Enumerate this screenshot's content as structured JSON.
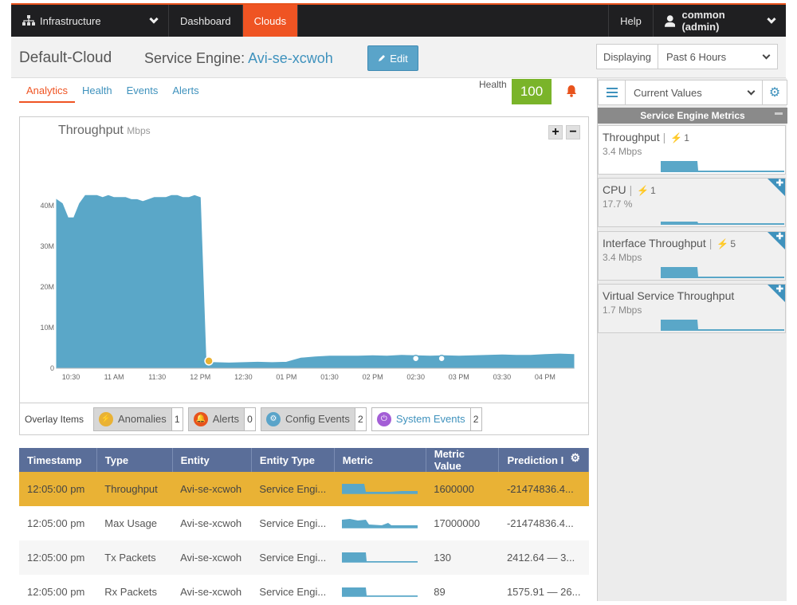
{
  "nav": {
    "infrastructure": "Infrastructure",
    "dashboard": "Dashboard",
    "clouds": "Clouds",
    "help": "Help",
    "user": "common (admin)"
  },
  "header": {
    "cloud": "Default-Cloud",
    "se_label": "Service Engine:",
    "se_name": "Avi-se-xcwoh",
    "edit": "Edit",
    "displaying_label": "Displaying",
    "displaying_value": "Past 6 Hours"
  },
  "tabs": [
    "Analytics",
    "Health",
    "Events",
    "Alerts"
  ],
  "health": {
    "label": "Health",
    "value": "100"
  },
  "chart_data": {
    "type": "area",
    "title": "Throughput",
    "unit": "Mbps",
    "yticks": [
      "0",
      "10M",
      "20M",
      "30M",
      "40M"
    ],
    "xticks": [
      "10:30",
      "11 AM",
      "11:30",
      "12 PM",
      "12:30",
      "01 PM",
      "01:30",
      "02 PM",
      "02:30",
      "03 PM",
      "03:30",
      "04 PM"
    ],
    "ylim": [
      0,
      50
    ],
    "color": "#5aa7c8",
    "x": [
      0,
      4,
      8,
      12,
      16,
      20,
      24,
      28,
      32,
      36,
      40,
      44,
      48,
      52,
      56,
      60,
      64,
      68,
      72,
      76,
      80,
      84,
      88,
      92,
      96,
      100,
      104,
      106,
      110,
      120,
      130,
      140,
      150,
      160,
      170,
      180,
      190,
      200,
      210,
      220,
      230,
      240,
      250,
      260,
      270,
      280,
      290,
      300,
      310,
      320,
      330,
      340,
      350,
      360
    ],
    "values": [
      41.5,
      40.5,
      37,
      37,
      40.5,
      42.5,
      42.5,
      42.5,
      42,
      42.5,
      42,
      42,
      42,
      41.5,
      41.5,
      41,
      41.5,
      42,
      42,
      42,
      42.5,
      42.5,
      42,
      42,
      42.5,
      42,
      1.5,
      1.4,
      1.4,
      1.3,
      1.4,
      1.5,
      1.4,
      1.5,
      2.5,
      2.8,
      3.0,
      3.0,
      3.0,
      3.1,
      3.0,
      3.2,
      3.1,
      3.0,
      3.1,
      3.0,
      3.1,
      3.2,
      3.3,
      3.2,
      3.2,
      3.4,
      3.5,
      3.4
    ],
    "markers": [
      {
        "x": 106,
        "kind": "anomaly"
      },
      {
        "x": 250,
        "kind": "config"
      },
      {
        "x": 268,
        "kind": "config"
      }
    ]
  },
  "overlay": {
    "title": "Overlay Items",
    "items": [
      {
        "label": "Anomalies",
        "count": "1",
        "color": "#e9b235"
      },
      {
        "label": "Alerts",
        "count": "0",
        "color": "#e8531c"
      },
      {
        "label": "Config Events",
        "count": "2",
        "color": "#5aa4c9"
      },
      {
        "label": "System Events",
        "count": "2",
        "color": "#a35ed6"
      }
    ]
  },
  "table": {
    "headers": [
      "Timestamp",
      "Type",
      "Entity",
      "Entity Type",
      "Metric",
      "Metric Value",
      "Prediction I"
    ],
    "rows": [
      [
        "12:05:00 pm",
        "Throughput",
        "Avi-se-xcwoh",
        "Service Engi...",
        "",
        "1600000",
        "-21474836.4..."
      ],
      [
        "12:05:00 pm",
        "Max Usage",
        "Avi-se-xcwoh",
        "Service Engi...",
        "",
        "17000000",
        "-21474836.4..."
      ],
      [
        "12:05:00 pm",
        "Tx Packets",
        "Avi-se-xcwoh",
        "Service Engi...",
        "",
        "130",
        "2412.64 — 3..."
      ],
      [
        "12:05:00 pm",
        "Rx Packets",
        "Avi-se-xcwoh",
        "Service Engi...",
        "",
        "89",
        "1575.91 — 26..."
      ]
    ]
  },
  "sidebar": {
    "select": "Current Values",
    "heading": "Service Engine Metrics",
    "metrics": [
      {
        "name": "Throughput",
        "alerts": "1",
        "value": "3.4 Mbps"
      },
      {
        "name": "CPU",
        "alerts": "1",
        "value": "17.7 %"
      },
      {
        "name": "Interface Throughput",
        "alerts": "5",
        "value": "3.4 Mbps"
      },
      {
        "name": "Virtual Service Throughput",
        "alerts": "",
        "value": "1.7 Mbps"
      }
    ]
  }
}
